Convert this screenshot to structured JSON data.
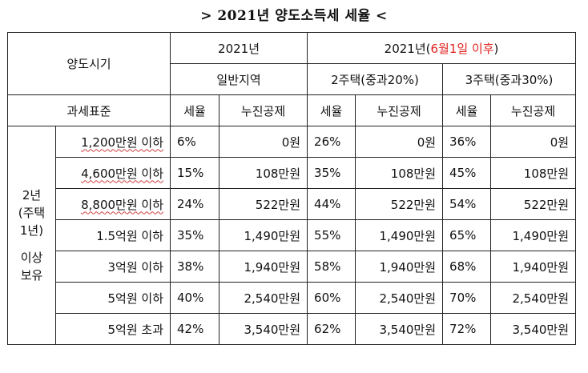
{
  "title": "> 2021년 양도소득세 세율 <",
  "header": {
    "period_label": "양도시기",
    "year_2021": "2021년",
    "year_2021_after_prefix": "2021년(",
    "year_2021_after_highlight": "6월1일 이후",
    "year_2021_after_suffix": ")",
    "general_area": "일반지역",
    "two_homes": "2주택(중과20%)",
    "three_homes": "3주택(중과30%)",
    "tax_base": "과세표준",
    "rate": "세율",
    "deduction": "누진공제"
  },
  "side_label": {
    "line1": "2년",
    "line2": "(주택",
    "line3": "1년)",
    "line4": "이상",
    "line5": "보유"
  },
  "rows": [
    {
      "base": "1,200만원 이하",
      "r1": "6%",
      "d1": "0원",
      "r2": "26%",
      "d2": "0원",
      "r3": "36%",
      "d3": "0원"
    },
    {
      "base": "4,600만원 이하",
      "r1": "15%",
      "d1": "108만원",
      "r2": "35%",
      "d2": "108만원",
      "r3": "45%",
      "d3": "108만원"
    },
    {
      "base": "8,800만원 이하",
      "r1": "24%",
      "d1": "522만원",
      "r2": "44%",
      "d2": "522만원",
      "r3": "54%",
      "d3": "522만원"
    },
    {
      "base": "1.5억원 이하",
      "r1": "35%",
      "d1": "1,490만원",
      "r2": "55%",
      "d2": "1,490만원",
      "r3": "65%",
      "d3": "1,490만원"
    },
    {
      "base": "3억원 이하",
      "r1": "38%",
      "d1": "1,940만원",
      "r2": "58%",
      "d2": "1,940만원",
      "r3": "68%",
      "d3": "1,940만원"
    },
    {
      "base": "5억원 이하",
      "r1": "40%",
      "d1": "2,540만원",
      "r2": "60%",
      "d2": "2,540만원",
      "r3": "70%",
      "d3": "2,540만원"
    },
    {
      "base": "5억원 초과",
      "r1": "42%",
      "d1": "3,540만원",
      "r2": "62%",
      "d2": "3,540만원",
      "r3": "72%",
      "d3": "3,540만원"
    }
  ]
}
